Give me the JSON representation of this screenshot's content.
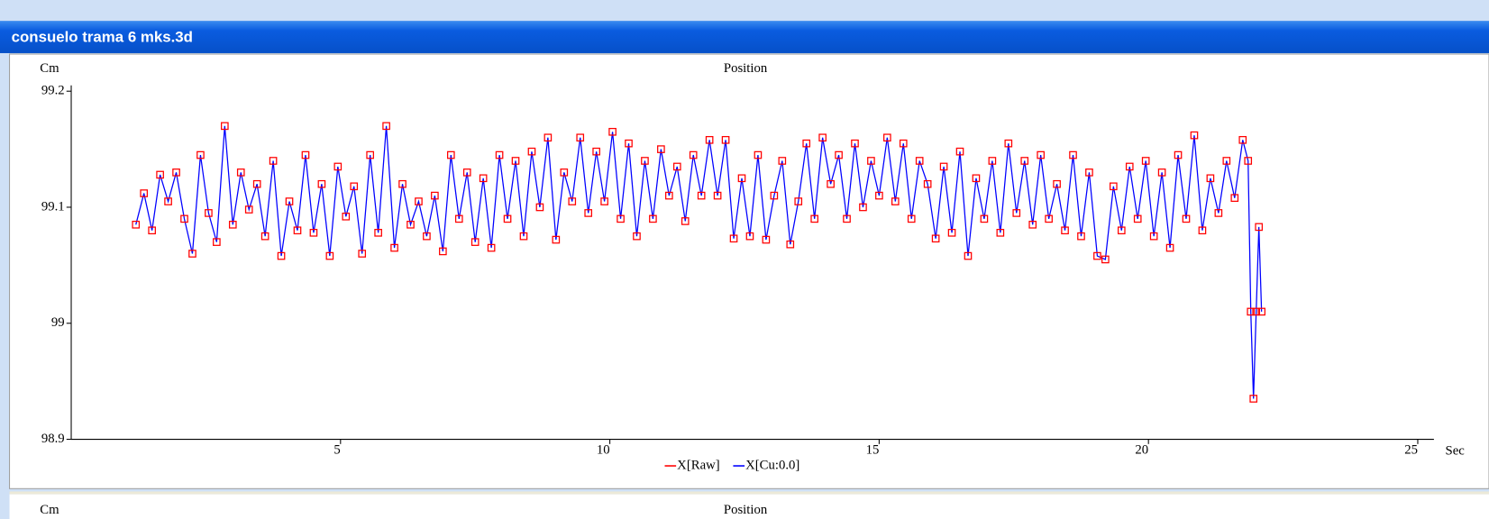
{
  "window": {
    "title": "consuelo trama 6 mks.3d"
  },
  "chart_data": {
    "type": "line",
    "title": "Position",
    "y_label": "Cm",
    "x_label": "Sec",
    "x": [
      1.2,
      1.35,
      1.5,
      1.65,
      1.8,
      1.95,
      2.1,
      2.25,
      2.4,
      2.55,
      2.7,
      2.85,
      3,
      3.15,
      3.3,
      3.45,
      3.6,
      3.75,
      3.9,
      4.05,
      4.2,
      4.35,
      4.5,
      4.65,
      4.8,
      4.95,
      5.1,
      5.25,
      5.4,
      5.55,
      5.7,
      5.85,
      6,
      6.15,
      6.3,
      6.45,
      6.6,
      6.75,
      6.9,
      7.05,
      7.2,
      7.35,
      7.5,
      7.65,
      7.8,
      7.95,
      8.1,
      8.25,
      8.4,
      8.55,
      8.7,
      8.85,
      9,
      9.15,
      9.3,
      9.45,
      9.6,
      9.75,
      9.9,
      10.05,
      10.2,
      10.35,
      10.5,
      10.65,
      10.8,
      10.95,
      11.1,
      11.25,
      11.4,
      11.55,
      11.7,
      11.85,
      12,
      12.15,
      12.3,
      12.45,
      12.6,
      12.75,
      12.9,
      13.05,
      13.2,
      13.35,
      13.5,
      13.65,
      13.8,
      13.95,
      14.1,
      14.25,
      14.4,
      14.55,
      14.7,
      14.85,
      15,
      15.15,
      15.3,
      15.45,
      15.6,
      15.75,
      15.9,
      16.05,
      16.2,
      16.35,
      16.5,
      16.65,
      16.8,
      16.95,
      17.1,
      17.25,
      17.4,
      17.55,
      17.7,
      17.85,
      18,
      18.15,
      18.3,
      18.45,
      18.6,
      18.75,
      18.9,
      19.05,
      19.2,
      19.35,
      19.5,
      19.65,
      19.8,
      19.95,
      20.1,
      20.25,
      20.4,
      20.55,
      20.7,
      20.85,
      21,
      21.15,
      21.3,
      21.45,
      21.6,
      21.75,
      21.85,
      21.9,
      21.95,
      22,
      22.05,
      22.1
    ],
    "series": [
      {
        "name": "X[Raw]",
        "color": "#ff0000",
        "style": "markers",
        "values": [
          99.085,
          99.112,
          99.08,
          99.128,
          99.105,
          99.13,
          99.09,
          99.06,
          99.145,
          99.095,
          99.07,
          99.17,
          99.085,
          99.13,
          99.098,
          99.12,
          99.075,
          99.14,
          99.058,
          99.105,
          99.08,
          99.145,
          99.078,
          99.12,
          99.058,
          99.135,
          99.092,
          99.118,
          99.06,
          99.145,
          99.078,
          99.17,
          99.065,
          99.12,
          99.085,
          99.105,
          99.075,
          99.11,
          99.062,
          99.145,
          99.09,
          99.13,
          99.07,
          99.125,
          99.065,
          99.145,
          99.09,
          99.14,
          99.075,
          99.148,
          99.1,
          99.16,
          99.072,
          99.13,
          99.105,
          99.16,
          99.095,
          99.148,
          99.105,
          99.165,
          99.09,
          99.155,
          99.075,
          99.14,
          99.09,
          99.15,
          99.11,
          99.135,
          99.088,
          99.145,
          99.11,
          99.158,
          99.11,
          99.158,
          99.073,
          99.125,
          99.075,
          99.145,
          99.072,
          99.11,
          99.14,
          99.068,
          99.105,
          99.155,
          99.09,
          99.16,
          99.12,
          99.145,
          99.09,
          99.155,
          99.1,
          99.14,
          99.11,
          99.16,
          99.105,
          99.155,
          99.09,
          99.14,
          99.12,
          99.073,
          99.135,
          99.078,
          99.148,
          99.058,
          99.125,
          99.09,
          99.14,
          99.078,
          99.155,
          99.095,
          99.14,
          99.085,
          99.145,
          99.09,
          99.12,
          99.08,
          99.145,
          99.075,
          99.13,
          99.058,
          99.055,
          99.118,
          99.08,
          99.135,
          99.09,
          99.14,
          99.075,
          99.13,
          99.065,
          99.145,
          99.09,
          99.162,
          99.08,
          99.125,
          99.095,
          99.14,
          99.108,
          99.158,
          99.14,
          99.01,
          98.935,
          99.01,
          99.083,
          99.01
        ]
      },
      {
        "name": "X[Cu:0.0]",
        "color": "#0000ff",
        "style": "line",
        "values": [
          99.085,
          99.112,
          99.08,
          99.128,
          99.105,
          99.13,
          99.09,
          99.06,
          99.145,
          99.095,
          99.07,
          99.17,
          99.085,
          99.13,
          99.098,
          99.12,
          99.075,
          99.14,
          99.058,
          99.105,
          99.08,
          99.145,
          99.078,
          99.12,
          99.058,
          99.135,
          99.092,
          99.118,
          99.06,
          99.145,
          99.078,
          99.17,
          99.065,
          99.12,
          99.085,
          99.105,
          99.075,
          99.11,
          99.062,
          99.145,
          99.09,
          99.13,
          99.07,
          99.125,
          99.065,
          99.145,
          99.09,
          99.14,
          99.075,
          99.148,
          99.1,
          99.16,
          99.072,
          99.13,
          99.105,
          99.16,
          99.095,
          99.148,
          99.105,
          99.165,
          99.09,
          99.155,
          99.075,
          99.14,
          99.09,
          99.15,
          99.11,
          99.135,
          99.088,
          99.145,
          99.11,
          99.158,
          99.11,
          99.158,
          99.073,
          99.125,
          99.075,
          99.145,
          99.072,
          99.11,
          99.14,
          99.068,
          99.105,
          99.155,
          99.09,
          99.16,
          99.12,
          99.145,
          99.09,
          99.155,
          99.1,
          99.14,
          99.11,
          99.16,
          99.105,
          99.155,
          99.09,
          99.14,
          99.12,
          99.073,
          99.135,
          99.078,
          99.148,
          99.058,
          99.125,
          99.09,
          99.14,
          99.078,
          99.155,
          99.095,
          99.14,
          99.085,
          99.145,
          99.09,
          99.12,
          99.08,
          99.145,
          99.075,
          99.13,
          99.058,
          99.055,
          99.118,
          99.08,
          99.135,
          99.09,
          99.14,
          99.075,
          99.13,
          99.065,
          99.145,
          99.09,
          99.162,
          99.08,
          99.125,
          99.095,
          99.14,
          99.108,
          99.158,
          99.14,
          99.01,
          98.935,
          99.01,
          99.083,
          99.01
        ]
      }
    ],
    "xlim": [
      0,
      25.3
    ],
    "xticks": [
      5,
      10,
      15,
      20,
      25
    ],
    "ylim": [
      98.9,
      99.205
    ],
    "yticks": [
      98.9,
      99,
      99.1,
      99.2
    ]
  },
  "lower_panel": {
    "y_label": "Cm",
    "title": "Position"
  }
}
